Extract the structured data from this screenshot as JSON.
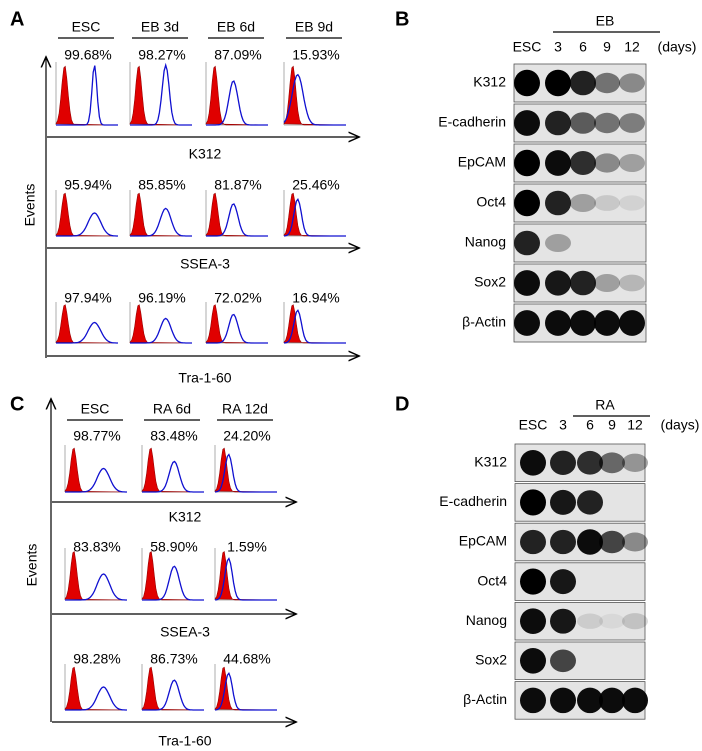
{
  "panels": [
    {
      "label": "A",
      "y_axis": "Events",
      "columns": [
        "ESC",
        "EB 3d",
        "EB 6d",
        "EB 9d"
      ],
      "rows": [
        {
          "marker": "K312",
          "percentages": [
            "99.68%",
            "98.27%",
            "87.09%",
            "15.93%"
          ]
        },
        {
          "marker": "SSEA-3",
          "percentages": [
            "95.94%",
            "85.85%",
            "81.87%",
            "25.46%"
          ]
        },
        {
          "marker": "Tra-1-60",
          "percentages": [
            "97.94%",
            "96.19%",
            "72.02%",
            "16.94%"
          ]
        }
      ]
    },
    {
      "label": "B",
      "group": "EB",
      "lanes": [
        "ESC",
        "3",
        "6",
        "9",
        "12"
      ],
      "unit": "(days)",
      "bands": [
        "K312",
        "E-cadherin",
        "EpCAM",
        "Oct4",
        "Nanog",
        "Sox2",
        "β-Actin"
      ]
    },
    {
      "label": "C",
      "y_axis": "Events",
      "columns": [
        "ESC",
        "RA 6d",
        "RA 12d"
      ],
      "rows": [
        {
          "marker": "K312",
          "percentages": [
            "98.77%",
            "83.48%",
            "24.20%"
          ]
        },
        {
          "marker": "SSEA-3",
          "percentages": [
            "83.83%",
            "58.90%",
            "1.59%"
          ]
        },
        {
          "marker": "Tra-1-60",
          "percentages": [
            "98.28%",
            "86.73%",
            "44.68%"
          ]
        }
      ]
    },
    {
      "label": "D",
      "group": "RA",
      "lanes": [
        "ESC",
        "3",
        "6",
        "9",
        "12"
      ],
      "unit": "(days)",
      "bands": [
        "K312",
        "E-cadherin",
        "EpCAM",
        "Oct4",
        "Nanog",
        "Sox2",
        "β-Actin"
      ]
    }
  ]
}
